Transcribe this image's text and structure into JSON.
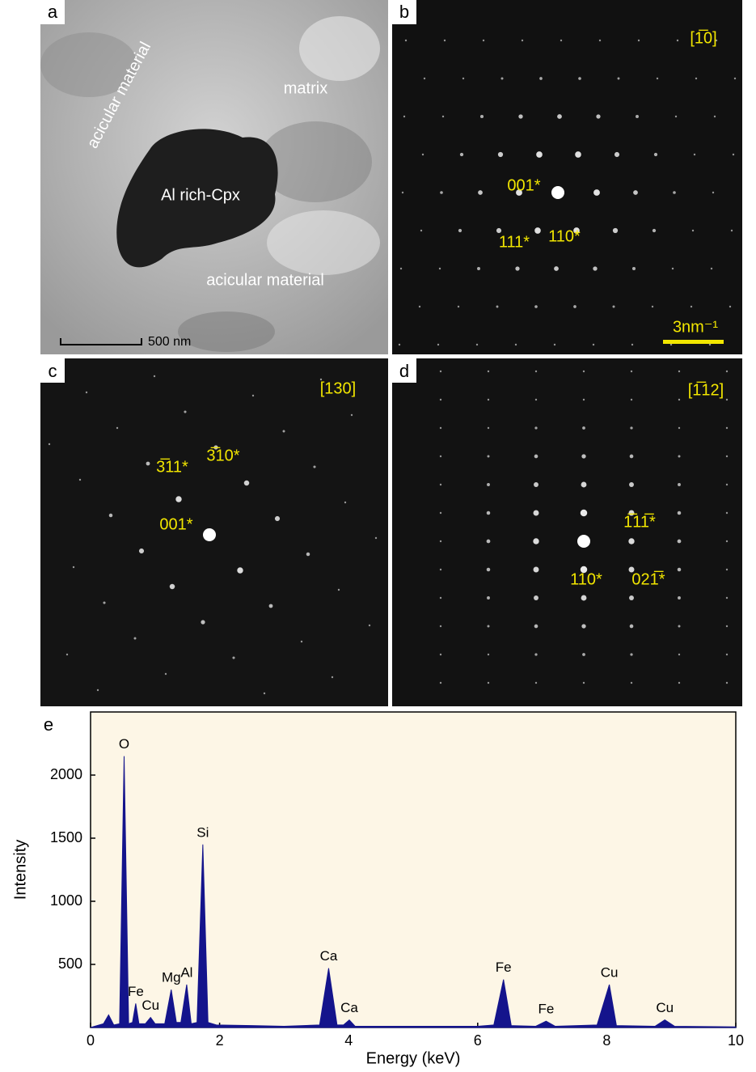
{
  "panels": [
    {
      "letter": "a",
      "labels": [
        "matrix",
        "acicular material",
        "Al rich-Cpx",
        "acicular material",
        "500 nm"
      ]
    },
    {
      "letter": "b",
      "labels": [
        "[1̅0]",
        "001*",
        "111*",
        "110*",
        "3nm⁻¹"
      ]
    },
    {
      "letter": "c",
      "labels": [
        "[130]",
        "3̅11*",
        "3̅10*",
        "001*"
      ]
    },
    {
      "letter": "d",
      "labels": [
        "[1̅12]",
        "1̅11̅*",
        "110*",
        "021̅*"
      ]
    }
  ],
  "chart_data": {
    "type": "area",
    "panel_letter": "e",
    "x_label": "Energy (keV)",
    "y_label": "Intensity",
    "color": "#14148c",
    "x": [
      0,
      0.2,
      0.28,
      0.36,
      0.45,
      0.52,
      0.59,
      0.65,
      0.7,
      0.75,
      0.85,
      0.93,
      1.0,
      1.15,
      1.25,
      1.33,
      1.4,
      1.49,
      1.56,
      1.65,
      1.74,
      1.82,
      1.95,
      2.5,
      3.0,
      3.55,
      3.69,
      3.82,
      3.92,
      4.01,
      4.1,
      5,
      6.0,
      6.25,
      6.4,
      6.52,
      6.9,
      7.06,
      7.2,
      7.85,
      8.04,
      8.15,
      8.75,
      8.9,
      9.05,
      10
    ],
    "values": [
      0,
      30,
      100,
      20,
      30,
      2150,
      30,
      40,
      190,
      30,
      30,
      80,
      30,
      30,
      300,
      40,
      40,
      340,
      30,
      40,
      1450,
      40,
      20,
      15,
      10,
      20,
      470,
      20,
      20,
      60,
      10,
      10,
      10,
      20,
      380,
      15,
      10,
      50,
      10,
      20,
      340,
      15,
      10,
      60,
      10,
      5
    ],
    "peaks": [
      {
        "label": "O",
        "x": 0.52,
        "value": 2150
      },
      {
        "label": "Fe",
        "x": 0.7,
        "value": 190
      },
      {
        "label": "Cu",
        "x": 0.93,
        "value": 80
      },
      {
        "label": "Mg",
        "x": 1.25,
        "value": 300
      },
      {
        "label": "Al",
        "x": 1.49,
        "value": 340
      },
      {
        "label": "Si",
        "x": 1.74,
        "value": 1450
      },
      {
        "label": "Ca",
        "x": 3.69,
        "value": 470
      },
      {
        "label": "Ca",
        "x": 4.01,
        "value": 60
      },
      {
        "label": "Fe",
        "x": 6.4,
        "value": 380
      },
      {
        "label": "Fe",
        "x": 7.06,
        "value": 50
      },
      {
        "label": "Cu",
        "x": 8.04,
        "value": 340
      },
      {
        "label": "Cu",
        "x": 8.9,
        "value": 60
      }
    ],
    "xlim": [
      0,
      10
    ],
    "xticks": [
      0,
      2,
      4,
      6,
      8,
      10
    ],
    "ylim": [
      0,
      2500
    ],
    "yticks": [
      500,
      1000,
      1500,
      2000
    ]
  }
}
